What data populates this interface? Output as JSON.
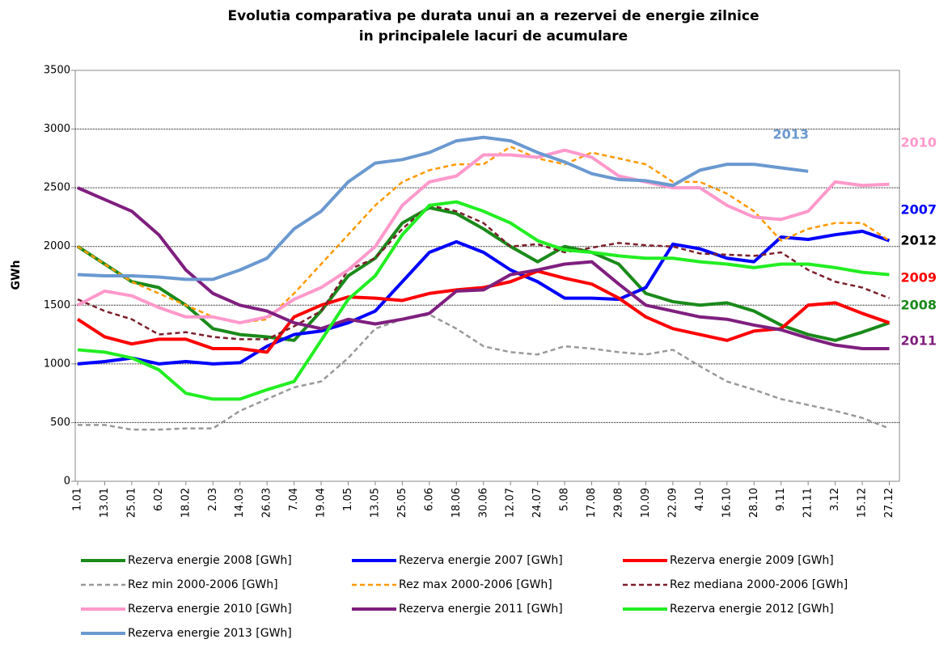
{
  "chart_data": {
    "type": "line",
    "title": [
      "Evolutia comparativa pe durata unui an a rezervei de energie zilnice",
      "in principalele lacuri de acumulare"
    ],
    "y_label": "GWh",
    "categories": [
      "1.01",
      "13.01",
      "25.01",
      "6.02",
      "18.02",
      "2.03",
      "14.03",
      "26.03",
      "7.04",
      "19.04",
      "1.05",
      "13.05",
      "25.05",
      "6.06",
      "18.06",
      "30.06",
      "12.07",
      "24.07",
      "5.08",
      "17.08",
      "29.08",
      "10.09",
      "22.09",
      "4.10",
      "16.10",
      "28.10",
      "9.11",
      "21.11",
      "3.12",
      "15.12",
      "27.12"
    ],
    "ylim": [
      0,
      3500
    ],
    "yticks": [
      0,
      500,
      1000,
      1500,
      2000,
      2500,
      3000,
      3500
    ],
    "grid": true,
    "series": [
      {
        "name": "Rezerva energie 2008 [GWh]",
        "color": "#1a8a1a",
        "style": "solid",
        "values": [
          2000,
          1850,
          1700,
          1650,
          1500,
          1300,
          1250,
          1230,
          1200,
          1450,
          1750,
          1900,
          2200,
          2330,
          2280,
          2150,
          2000,
          1870,
          2000,
          1950,
          1850,
          1600,
          1530,
          1500,
          1520,
          1450,
          1330,
          1250,
          1200,
          1270,
          1350
        ]
      },
      {
        "name": "Rezerva energie 2007 [GWh]",
        "color": "#0000ff",
        "style": "solid",
        "values": [
          1000,
          1020,
          1050,
          1000,
          1020,
          1000,
          1010,
          1150,
          1250,
          1280,
          1350,
          1450,
          1700,
          1950,
          2040,
          1950,
          1800,
          1700,
          1560,
          1560,
          1550,
          1650,
          2020,
          1980,
          1900,
          1870,
          2080,
          2060,
          2100,
          2130,
          2050
        ]
      },
      {
        "name": "Rezerva energie 2009 [GWh]",
        "color": "#ff0000",
        "style": "solid",
        "values": [
          1380,
          1230,
          1170,
          1210,
          1210,
          1130,
          1130,
          1100,
          1400,
          1500,
          1570,
          1560,
          1540,
          1600,
          1630,
          1650,
          1700,
          1790,
          1730,
          1680,
          1560,
          1400,
          1300,
          1250,
          1200,
          1280,
          1300,
          1500,
          1520,
          1430,
          1350
        ]
      },
      {
        "name": "Rez min 2000-2006 [GWh]",
        "color": "#999999",
        "style": "dashed",
        "values": [
          480,
          480,
          440,
          440,
          450,
          450,
          600,
          700,
          800,
          850,
          1050,
          1300,
          1380,
          1420,
          1300,
          1150,
          1100,
          1080,
          1150,
          1130,
          1100,
          1080,
          1120,
          980,
          850,
          780,
          700,
          650,
          600,
          540,
          450
        ]
      },
      {
        "name": "Rez max 2000-2006 [GWh]",
        "color": "#ff9900",
        "style": "dashed",
        "values": [
          2000,
          1850,
          1700,
          1600,
          1500,
          1400,
          1350,
          1380,
          1600,
          1850,
          2100,
          2350,
          2550,
          2650,
          2700,
          2700,
          2850,
          2750,
          2700,
          2800,
          2750,
          2700,
          2550,
          2550,
          2450,
          2300,
          2050,
          2150,
          2200,
          2200,
          2050
        ]
      },
      {
        "name": "Rez mediana 2000-2006 [GWh]",
        "color": "#7a1f2b",
        "style": "dashed",
        "values": [
          1550,
          1450,
          1380,
          1250,
          1270,
          1230,
          1210,
          1210,
          1320,
          1450,
          1800,
          1900,
          2150,
          2350,
          2300,
          2200,
          2000,
          2020,
          1950,
          1990,
          2030,
          2010,
          2000,
          1940,
          1930,
          1920,
          1950,
          1800,
          1700,
          1650,
          1560
        ]
      },
      {
        "name": "Rezerva energie 2010 [GWh]",
        "color": "#ff99cc",
        "style": "solid",
        "values": [
          1500,
          1620,
          1580,
          1480,
          1400,
          1400,
          1350,
          1400,
          1550,
          1650,
          1800,
          2000,
          2350,
          2550,
          2600,
          2780,
          2780,
          2760,
          2820,
          2760,
          2600,
          2550,
          2500,
          2500,
          2350,
          2250,
          2230,
          2300,
          2550,
          2520,
          2530
        ]
      },
      {
        "name": "Rezerva energie 2011 [GWh]",
        "color": "#7f1f7f",
        "style": "solid",
        "values": [
          2500,
          2400,
          2300,
          2100,
          1800,
          1600,
          1500,
          1450,
          1350,
          1300,
          1380,
          1340,
          1380,
          1430,
          1620,
          1630,
          1760,
          1800,
          1850,
          1870,
          1680,
          1500,
          1450,
          1400,
          1380,
          1330,
          1290,
          1220,
          1160,
          1130,
          1130
        ]
      },
      {
        "name": "Rezerva energie 2012 [GWh]",
        "color": "#22ee22",
        "style": "solid",
        "values": [
          1120,
          1100,
          1050,
          950,
          750,
          700,
          700,
          780,
          850,
          1200,
          1550,
          1750,
          2100,
          2350,
          2380,
          2300,
          2200,
          2050,
          1970,
          1950,
          1920,
          1900,
          1900,
          1870,
          1850,
          1820,
          1850,
          1850,
          1820,
          1780,
          1760
        ]
      },
      {
        "name": "Rezerva energie 2013 [GWh]",
        "color": "#6a99d0",
        "style": "solid",
        "values": [
          1760,
          1750,
          1750,
          1740,
          1720,
          1720,
          1800,
          1900,
          2150,
          2300,
          2550,
          2710,
          2740,
          2800,
          2900,
          2930,
          2900,
          2800,
          2720,
          2620,
          2570,
          2560,
          2520,
          2650,
          2700,
          2700,
          2670,
          2640,
          null,
          null,
          null
        ]
      }
    ],
    "annotations": [
      {
        "text": "2013",
        "color": "#6a99d0"
      },
      {
        "text": "2010",
        "color": "#ff99cc"
      },
      {
        "text": "2007",
        "color": "#0000ff"
      },
      {
        "text": "2012",
        "color": "#000000"
      },
      {
        "text": "2009",
        "color": "#ff0000"
      },
      {
        "text": "2008",
        "color": "#1a8a1a"
      },
      {
        "text": "2011",
        "color": "#7f1f7f"
      }
    ]
  }
}
